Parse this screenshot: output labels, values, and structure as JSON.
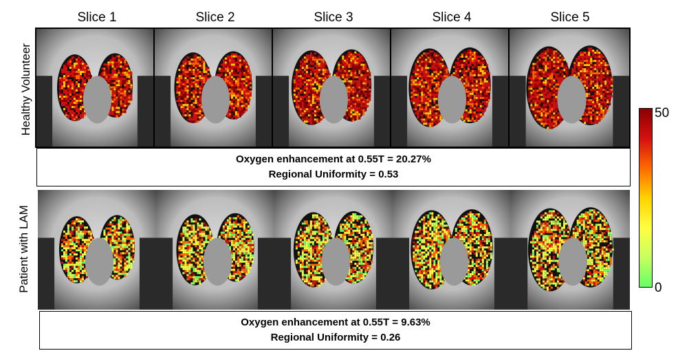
{
  "slices": [
    "Slice 1",
    "Slice 2",
    "Slice 3",
    "Slice 4",
    "Slice 5"
  ],
  "rows": [
    {
      "label": "Healthy Volunteer",
      "enhancement_text": "Oxygen enhancement at 0.55T = 20.27%",
      "uniformity_text": "Regional Uniformity = 0.53"
    },
    {
      "label": "Patient with LAM",
      "enhancement_text": "Oxygen enhancement at 0.55T = 9.63%",
      "uniformity_text": "Regional Uniformity = 0.26"
    }
  ],
  "colorbar": {
    "max_label": "50",
    "min_label": "0",
    "colors": [
      "#8b0000",
      "#d41010",
      "#ff6a00",
      "#ffd200",
      "#ffff40",
      "#c8ff60",
      "#66ff66"
    ]
  }
}
